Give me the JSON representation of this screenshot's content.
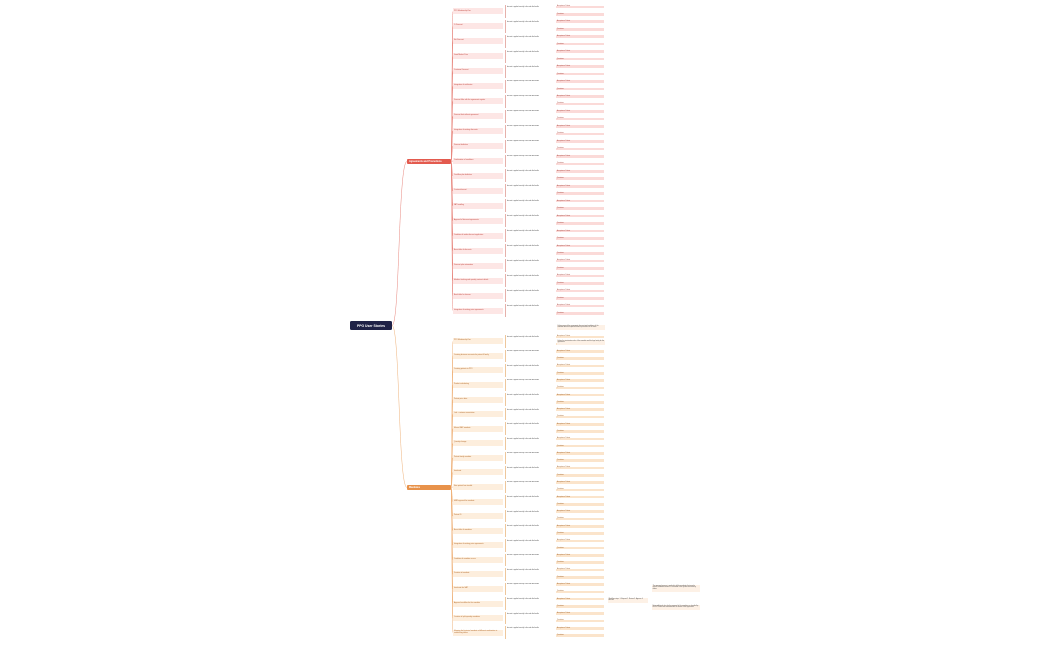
{
  "root": {
    "label": "PPO User Stories"
  },
  "branches": [
    {
      "label": "Agreements and Promotions",
      "stories": [
        "PPO Membership Fee",
        "% Discount",
        "Net Discount",
        "Good Market Price",
        "Customer Discount",
        "Integration of certificates",
        "Discount filter with the agreement register",
        "Discount limit without agreement",
        "Integration of existing discounts",
        "Discount definition",
        "Combination of conditions",
        "Cashflow plan definition",
        "Custom discount",
        "VAT handling",
        "Approval of discount agreements",
        "Condition of inside discount application",
        "Base table of discounts",
        "Discount plan automation",
        "Manifest tracking and quantity contract details",
        "Bank table for clauses",
        "Integration of existing price agreements"
      ]
    },
    {
      "label": "Mandates",
      "stories": [
        "PPO Membership Fee",
        "Creating business accounts for patent & family",
        "Creating patient via PPO",
        "Product substituting",
        "Patient price data",
        "Link - customer association",
        "Manual SAP mandate",
        "Quantity change",
        "Patient family mandate",
        "Inactivate",
        "New patient loan trouble",
        "HMR approval for mandate",
        "Patient ID",
        "Base table of mandates",
        "Integration of existing price agreements",
        "Condition of mandate access",
        "Duration of mandate",
        "Inactivate the SAP",
        "Approval workflow for the mandate",
        "Creation of split quantity mandates",
        "Mapping the historical mandate of different combination in unmatching tables"
      ]
    }
  ],
  "criteria_labels": {
    "acceptance": "Acceptance Criteria",
    "questions": "Questions"
  },
  "sample_text": {
    "short": "Legal entity, contract and account",
    "long": "As a PPO user I want to be able to manage the agreement so that the discount is applied correctly to the order and invoice"
  },
  "notes": [
    "Define payer of the agreement, discount and conditions of the mandate and the expected follow-up activities for the team",
    "Define the inactivation rules of the mandate and the legal entity for the agreement",
    "The approval process is applied to all the mandates that need a specific validation before it is activated in the system and used by orders",
    "Workflow steps: 1. Request 2. Review 3. Approve 4. Activate",
    "Note: additional rules for the approval of the mandate are handled by the PPO team and confirmed with the owner of the agreement"
  ]
}
